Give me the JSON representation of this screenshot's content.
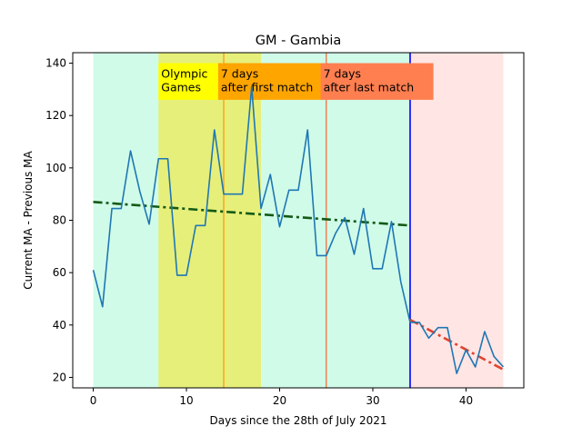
{
  "chart_data": {
    "type": "line",
    "title": "GM - Gambia",
    "xlabel": "Days since the 28th of July 2021",
    "ylabel": "Current MA - Previous MA",
    "xlim": [
      -2.2,
      46.2
    ],
    "ylim": [
      16,
      144
    ],
    "xticks": [
      0,
      10,
      20,
      30,
      40
    ],
    "yticks": [
      20,
      40,
      60,
      80,
      100,
      120,
      140
    ],
    "grid": false,
    "series": [
      {
        "color": "#1f77b4",
        "x": [
          0,
          1,
          2,
          3,
          4,
          5,
          6,
          7,
          8,
          9,
          10,
          11,
          12,
          13,
          14,
          15,
          16,
          17,
          18,
          19,
          20,
          21,
          22,
          23,
          24,
          25,
          26,
          27,
          28,
          29,
          30,
          31,
          32,
          33,
          34,
          35,
          36,
          37,
          38,
          39,
          40,
          41,
          42,
          43,
          44
        ],
        "y": [
          61,
          47,
          84.5,
          84.5,
          106.5,
          91,
          78.5,
          103.5,
          103.5,
          59,
          59,
          78,
          78,
          114.5,
          90,
          90,
          90,
          131,
          84.5,
          97.5,
          77.5,
          91.5,
          91.5,
          114.5,
          66.5,
          66.5,
          75,
          81,
          67,
          84.5,
          61.5,
          61.5,
          79.5,
          56.5,
          41,
          41,
          35,
          39,
          39,
          21.5,
          30.5,
          24,
          37.5,
          28,
          24
        ]
      }
    ],
    "trend_lines": [
      {
        "color": "#145a14",
        "x": [
          0,
          34
        ],
        "y": [
          87,
          78
        ]
      },
      {
        "color": "#e0442c",
        "x": [
          34,
          44
        ],
        "y": [
          42,
          23
        ]
      }
    ],
    "regions": [
      {
        "x": [
          0,
          34
        ],
        "color": "#d0fbe9"
      },
      {
        "x": [
          7,
          18
        ],
        "color": "#e6ef7a"
      },
      {
        "x": [
          34,
          44
        ],
        "color": "#ffe5e3"
      }
    ],
    "vlines": [
      {
        "x": 14,
        "color": "#ff9f1a"
      },
      {
        "x": 25,
        "color": "#f2784b"
      },
      {
        "x": 34,
        "color": "#0000ff"
      }
    ],
    "annotations": [
      {
        "lines": [
          "Olympic",
          "Games"
        ],
        "x_start": 7,
        "x_end": 13.4,
        "y_top": 140,
        "y_bottom": 126,
        "bg": "#ffff00"
      },
      {
        "lines": [
          "7 days",
          "after first match"
        ],
        "x_start": 13.4,
        "x_end": 24.8,
        "y_top": 140,
        "y_bottom": 126,
        "bg": "#ffa500"
      },
      {
        "lines": [
          "7 days",
          "after last match"
        ],
        "x_start": 24.4,
        "x_end": 36.5,
        "y_top": 140,
        "y_bottom": 126,
        "bg": "#ff7f50"
      }
    ]
  }
}
